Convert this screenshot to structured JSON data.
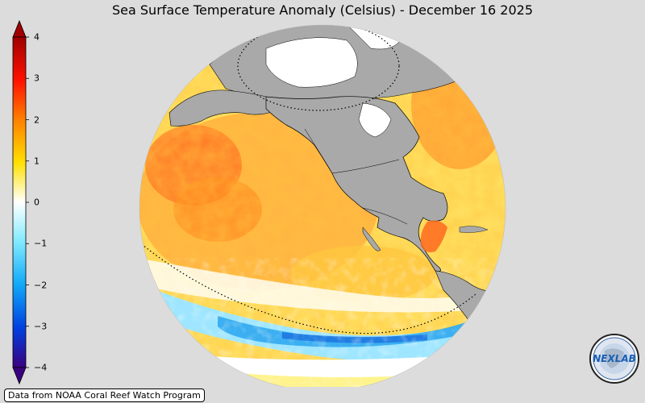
{
  "title": "Sea Surface Temperature Anomaly (Celsius) - December 16 2025",
  "colorbar": {
    "ticks": [
      "4",
      "3",
      "2",
      "1",
      "0",
      "−1",
      "−2",
      "−3",
      "−4"
    ],
    "min": -4,
    "max": 4,
    "colors": [
      "#3a0070",
      "#1040d0",
      "#1890ff",
      "#60d8ff",
      "#ffffff",
      "#fff200",
      "#ffb000",
      "#ff4000",
      "#a00000"
    ]
  },
  "map": {
    "land_color": "#a9a9a9",
    "ocean_warm_color": "#ffa838",
    "ocean_cold_color": "#40b8f0"
  },
  "credit": "Data from NOAA Coral Reef Watch Program",
  "logo": {
    "text": "NEXLAB",
    "icon": "nexlab-logo-icon"
  }
}
